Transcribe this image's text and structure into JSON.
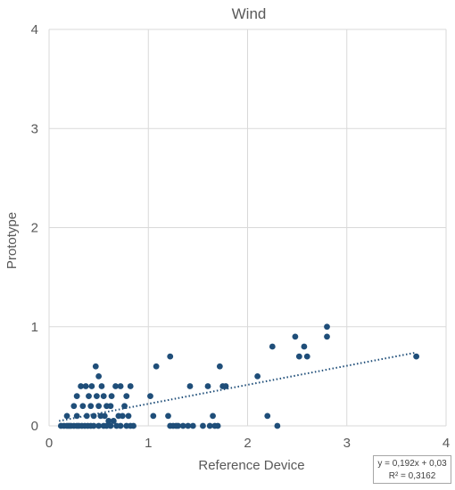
{
  "chart_data": {
    "type": "scatter",
    "title": "Wind",
    "xlabel": "Reference Device",
    "ylabel": "Prototype",
    "xlim": [
      0,
      4
    ],
    "ylim": [
      0,
      4
    ],
    "xticks": [
      "0",
      "1",
      "2",
      "3",
      "4"
    ],
    "yticks": [
      "0",
      "1",
      "2",
      "3",
      "4"
    ],
    "grid": true,
    "marker_color": "#1f4e79",
    "trendline": {
      "style": "dotted",
      "slope": 0.192,
      "intercept": 0.03,
      "x_range": [
        0.1,
        3.7
      ],
      "equation": "y = 0,192x + 0,03",
      "r_squared": "R² = 0,3162"
    },
    "points": [
      [
        0.12,
        0.0
      ],
      [
        0.15,
        0.0
      ],
      [
        0.18,
        0.0
      ],
      [
        0.2,
        0.0
      ],
      [
        0.22,
        0.0
      ],
      [
        0.25,
        0.0
      ],
      [
        0.28,
        0.0
      ],
      [
        0.3,
        0.0
      ],
      [
        0.33,
        0.0
      ],
      [
        0.36,
        0.0
      ],
      [
        0.39,
        0.0
      ],
      [
        0.42,
        0.0
      ],
      [
        0.45,
        0.0
      ],
      [
        0.5,
        0.0
      ],
      [
        0.55,
        0.0
      ],
      [
        0.58,
        0.0
      ],
      [
        0.62,
        0.0
      ],
      [
        0.68,
        0.0
      ],
      [
        0.72,
        0.0
      ],
      [
        0.78,
        0.0
      ],
      [
        0.82,
        0.0
      ],
      [
        0.85,
        0.0
      ],
      [
        0.18,
        0.1
      ],
      [
        0.28,
        0.1
      ],
      [
        0.34,
        0.2
      ],
      [
        0.38,
        0.1
      ],
      [
        0.4,
        0.3
      ],
      [
        0.42,
        0.2
      ],
      [
        0.43,
        0.4
      ],
      [
        0.45,
        0.1
      ],
      [
        0.47,
        0.6
      ],
      [
        0.48,
        0.3
      ],
      [
        0.5,
        0.2
      ],
      [
        0.5,
        0.5
      ],
      [
        0.52,
        0.1
      ],
      [
        0.53,
        0.4
      ],
      [
        0.55,
        0.3
      ],
      [
        0.56,
        0.1
      ],
      [
        0.58,
        0.2
      ],
      [
        0.6,
        0.05
      ],
      [
        0.62,
        0.2
      ],
      [
        0.63,
        0.3
      ],
      [
        0.65,
        0.05
      ],
      [
        0.67,
        0.4
      ],
      [
        0.7,
        0.1
      ],
      [
        0.72,
        0.4
      ],
      [
        0.74,
        0.1
      ],
      [
        0.76,
        0.2
      ],
      [
        0.78,
        0.3
      ],
      [
        0.8,
        0.1
      ],
      [
        0.82,
        0.4
      ],
      [
        0.25,
        0.2
      ],
      [
        0.28,
        0.3
      ],
      [
        0.32,
        0.4
      ],
      [
        0.37,
        0.4
      ],
      [
        1.02,
        0.3
      ],
      [
        1.05,
        0.1
      ],
      [
        1.08,
        0.6
      ],
      [
        1.2,
        0.1
      ],
      [
        1.22,
        0.7
      ],
      [
        1.22,
        0.0
      ],
      [
        1.25,
        0.0
      ],
      [
        1.28,
        0.0
      ],
      [
        1.3,
        0.0
      ],
      [
        1.35,
        0.0
      ],
      [
        1.4,
        0.0
      ],
      [
        1.42,
        0.4
      ],
      [
        1.45,
        0.0
      ],
      [
        1.55,
        0.0
      ],
      [
        1.6,
        0.4
      ],
      [
        1.62,
        0.0
      ],
      [
        1.65,
        0.1
      ],
      [
        1.67,
        0.0
      ],
      [
        1.7,
        0.0
      ],
      [
        1.72,
        0.6
      ],
      [
        1.75,
        0.4
      ],
      [
        1.78,
        0.4
      ],
      [
        2.1,
        0.5
      ],
      [
        2.2,
        0.1
      ],
      [
        2.25,
        0.8
      ],
      [
        2.3,
        0.0
      ],
      [
        2.48,
        0.9
      ],
      [
        2.52,
        0.7
      ],
      [
        2.57,
        0.8
      ],
      [
        2.6,
        0.7
      ],
      [
        2.8,
        1.0
      ],
      [
        2.8,
        0.9
      ],
      [
        3.7,
        0.7
      ]
    ]
  }
}
